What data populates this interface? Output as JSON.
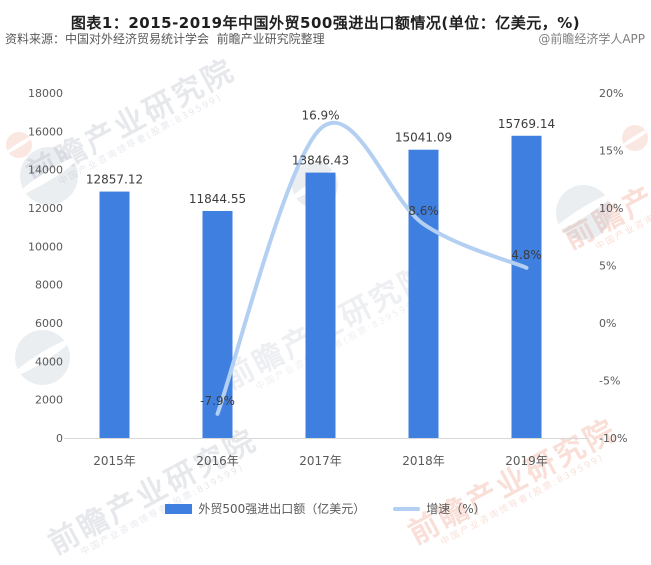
{
  "title": "图表1：2015-2019年中国外贸500强进出口额情况(单位：亿美元，%)",
  "chart_data": {
    "type": "combo-bar-line",
    "categories": [
      "2015年",
      "2016年",
      "2017年",
      "2018年",
      "2019年"
    ],
    "series": [
      {
        "name": "外贸500强进出口额（亿美元）",
        "type": "bar",
        "axis": "left",
        "values": [
          12857.12,
          11844.55,
          13846.43,
          15041.09,
          15769.14
        ],
        "labels": [
          "12857.12",
          "11844.55",
          "13846.43",
          "15041.09",
          "15769.14"
        ]
      },
      {
        "name": "增速（%）",
        "type": "line",
        "axis": "right",
        "values": [
          null,
          -7.9,
          16.9,
          8.6,
          4.8
        ],
        "labels": [
          null,
          "-7.9%",
          "16.9%",
          "8.6%",
          "4.8%"
        ]
      }
    ],
    "left_axis": {
      "min": 0,
      "max": 18000,
      "step": 2000,
      "ticks": [
        "0",
        "2000",
        "4000",
        "6000",
        "8000",
        "10000",
        "12000",
        "14000",
        "16000",
        "18000"
      ]
    },
    "right_axis": {
      "min": -10,
      "max": 20,
      "step": 5,
      "ticks": [
        "-10%",
        "-5%",
        "0%",
        "5%",
        "10%",
        "15%",
        "20%"
      ]
    },
    "grid": false,
    "legend_position": "bottom"
  },
  "legend": {
    "bar_label": "外贸500强进出口额（亿美元）",
    "line_label": "增速（%）"
  },
  "footer": {
    "source": "资料来源：中国对外经济贸易统计学会  前瞻产业研究院整理",
    "credit": "@前瞻经济学人APP"
  },
  "watermark": {
    "text": "前瞻产业研究院",
    "subtext": "中国产业咨询领导者(股票:839599)"
  },
  "colors": {
    "bar": "#3e7fdf",
    "line": "#b3cff2",
    "axis_line": "#d9d9d9",
    "axis_text": "#595959",
    "label_text": "#3c3c3c",
    "title_text": "#1f1f1f"
  }
}
